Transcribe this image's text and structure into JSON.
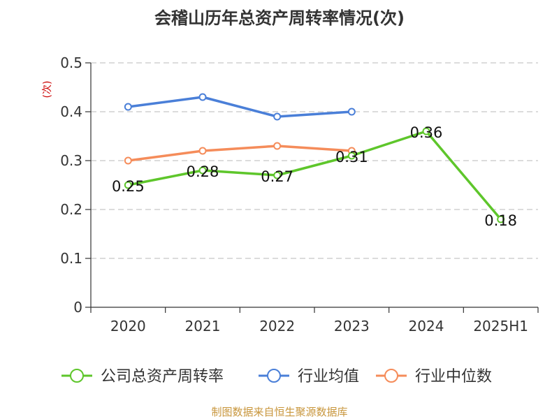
{
  "chart_data": {
    "type": "line",
    "title": "会稽山历年总资产周转率情况(次)",
    "ylabel": "(次)",
    "ylim": [
      0,
      0.5
    ],
    "yticks": [
      "0",
      "0.1",
      "0.2",
      "0.3",
      "0.4",
      "0.5"
    ],
    "categories": [
      "2020",
      "2021",
      "2022",
      "2023",
      "2024",
      "2025H1"
    ],
    "grid": true,
    "legend_position": "bottom",
    "series": [
      {
        "name": "公司总资产周转率",
        "color": "#5ec62b",
        "values": [
          0.25,
          0.28,
          0.27,
          0.31,
          0.36,
          0.18
        ],
        "data_labels": [
          "0.25",
          "0.28",
          "0.27",
          "0.31",
          "0.36",
          "0.18"
        ]
      },
      {
        "name": "行业均值",
        "color": "#4a7fd8",
        "values": [
          0.41,
          0.43,
          0.39,
          0.4,
          null,
          null
        ]
      },
      {
        "name": "行业中位数",
        "color": "#f58c5a",
        "values": [
          0.3,
          0.32,
          0.33,
          0.32,
          null,
          null
        ]
      }
    ],
    "ylabel_color": "#cc0000",
    "source": "制图数据来自恒生聚源数据库",
    "source_color": "#c8963c"
  }
}
